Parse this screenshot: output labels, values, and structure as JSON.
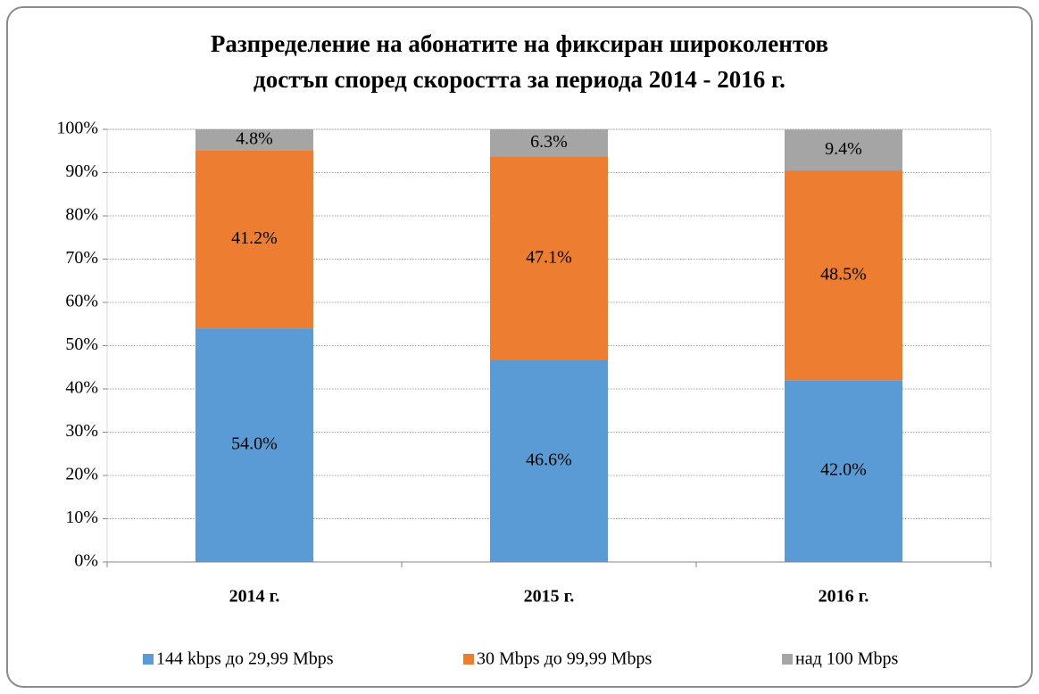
{
  "chart_data": {
    "type": "stacked_bar",
    "title": [
      "Разпределение на абонатите на фиксиран широколентов",
      "достъп според скоростта за периода 2014 - 2016 г."
    ],
    "categories": [
      "2014 г.",
      "2015 г.",
      "2016 г."
    ],
    "series": [
      {
        "name": "144 kbps до 29,99 Mbps",
        "color": "#5b9bd5",
        "values": [
          54.0,
          46.6,
          42.0
        ],
        "value_labels": [
          "54.0%",
          "46.6%",
          "42.0%"
        ]
      },
      {
        "name": "30 Mbps до 99,99 Mbps",
        "color": "#ed7d31",
        "values": [
          41.2,
          47.1,
          48.5
        ],
        "value_labels": [
          "41.2%",
          "47.1%",
          "48.5%"
        ]
      },
      {
        "name": "над 100 Mbps",
        "color": "#a5a5a5",
        "values": [
          4.8,
          6.3,
          9.4
        ],
        "value_labels": [
          "4.8%",
          "6.3%",
          "9.4%"
        ]
      }
    ],
    "ylim": [
      0,
      100
    ],
    "yticks": [
      {
        "value": 0,
        "label": "0%"
      },
      {
        "value": 10,
        "label": "10%"
      },
      {
        "value": 20,
        "label": "20%"
      },
      {
        "value": 30,
        "label": "30%"
      },
      {
        "value": 40,
        "label": "40%"
      },
      {
        "value": 50,
        "label": "50%"
      },
      {
        "value": 60,
        "label": "60%"
      },
      {
        "value": 70,
        "label": "70%"
      },
      {
        "value": 80,
        "label": "80%"
      },
      {
        "value": 90,
        "label": "90%"
      },
      {
        "value": 100,
        "label": "100%"
      }
    ],
    "grid": true,
    "legend": "bottom"
  }
}
